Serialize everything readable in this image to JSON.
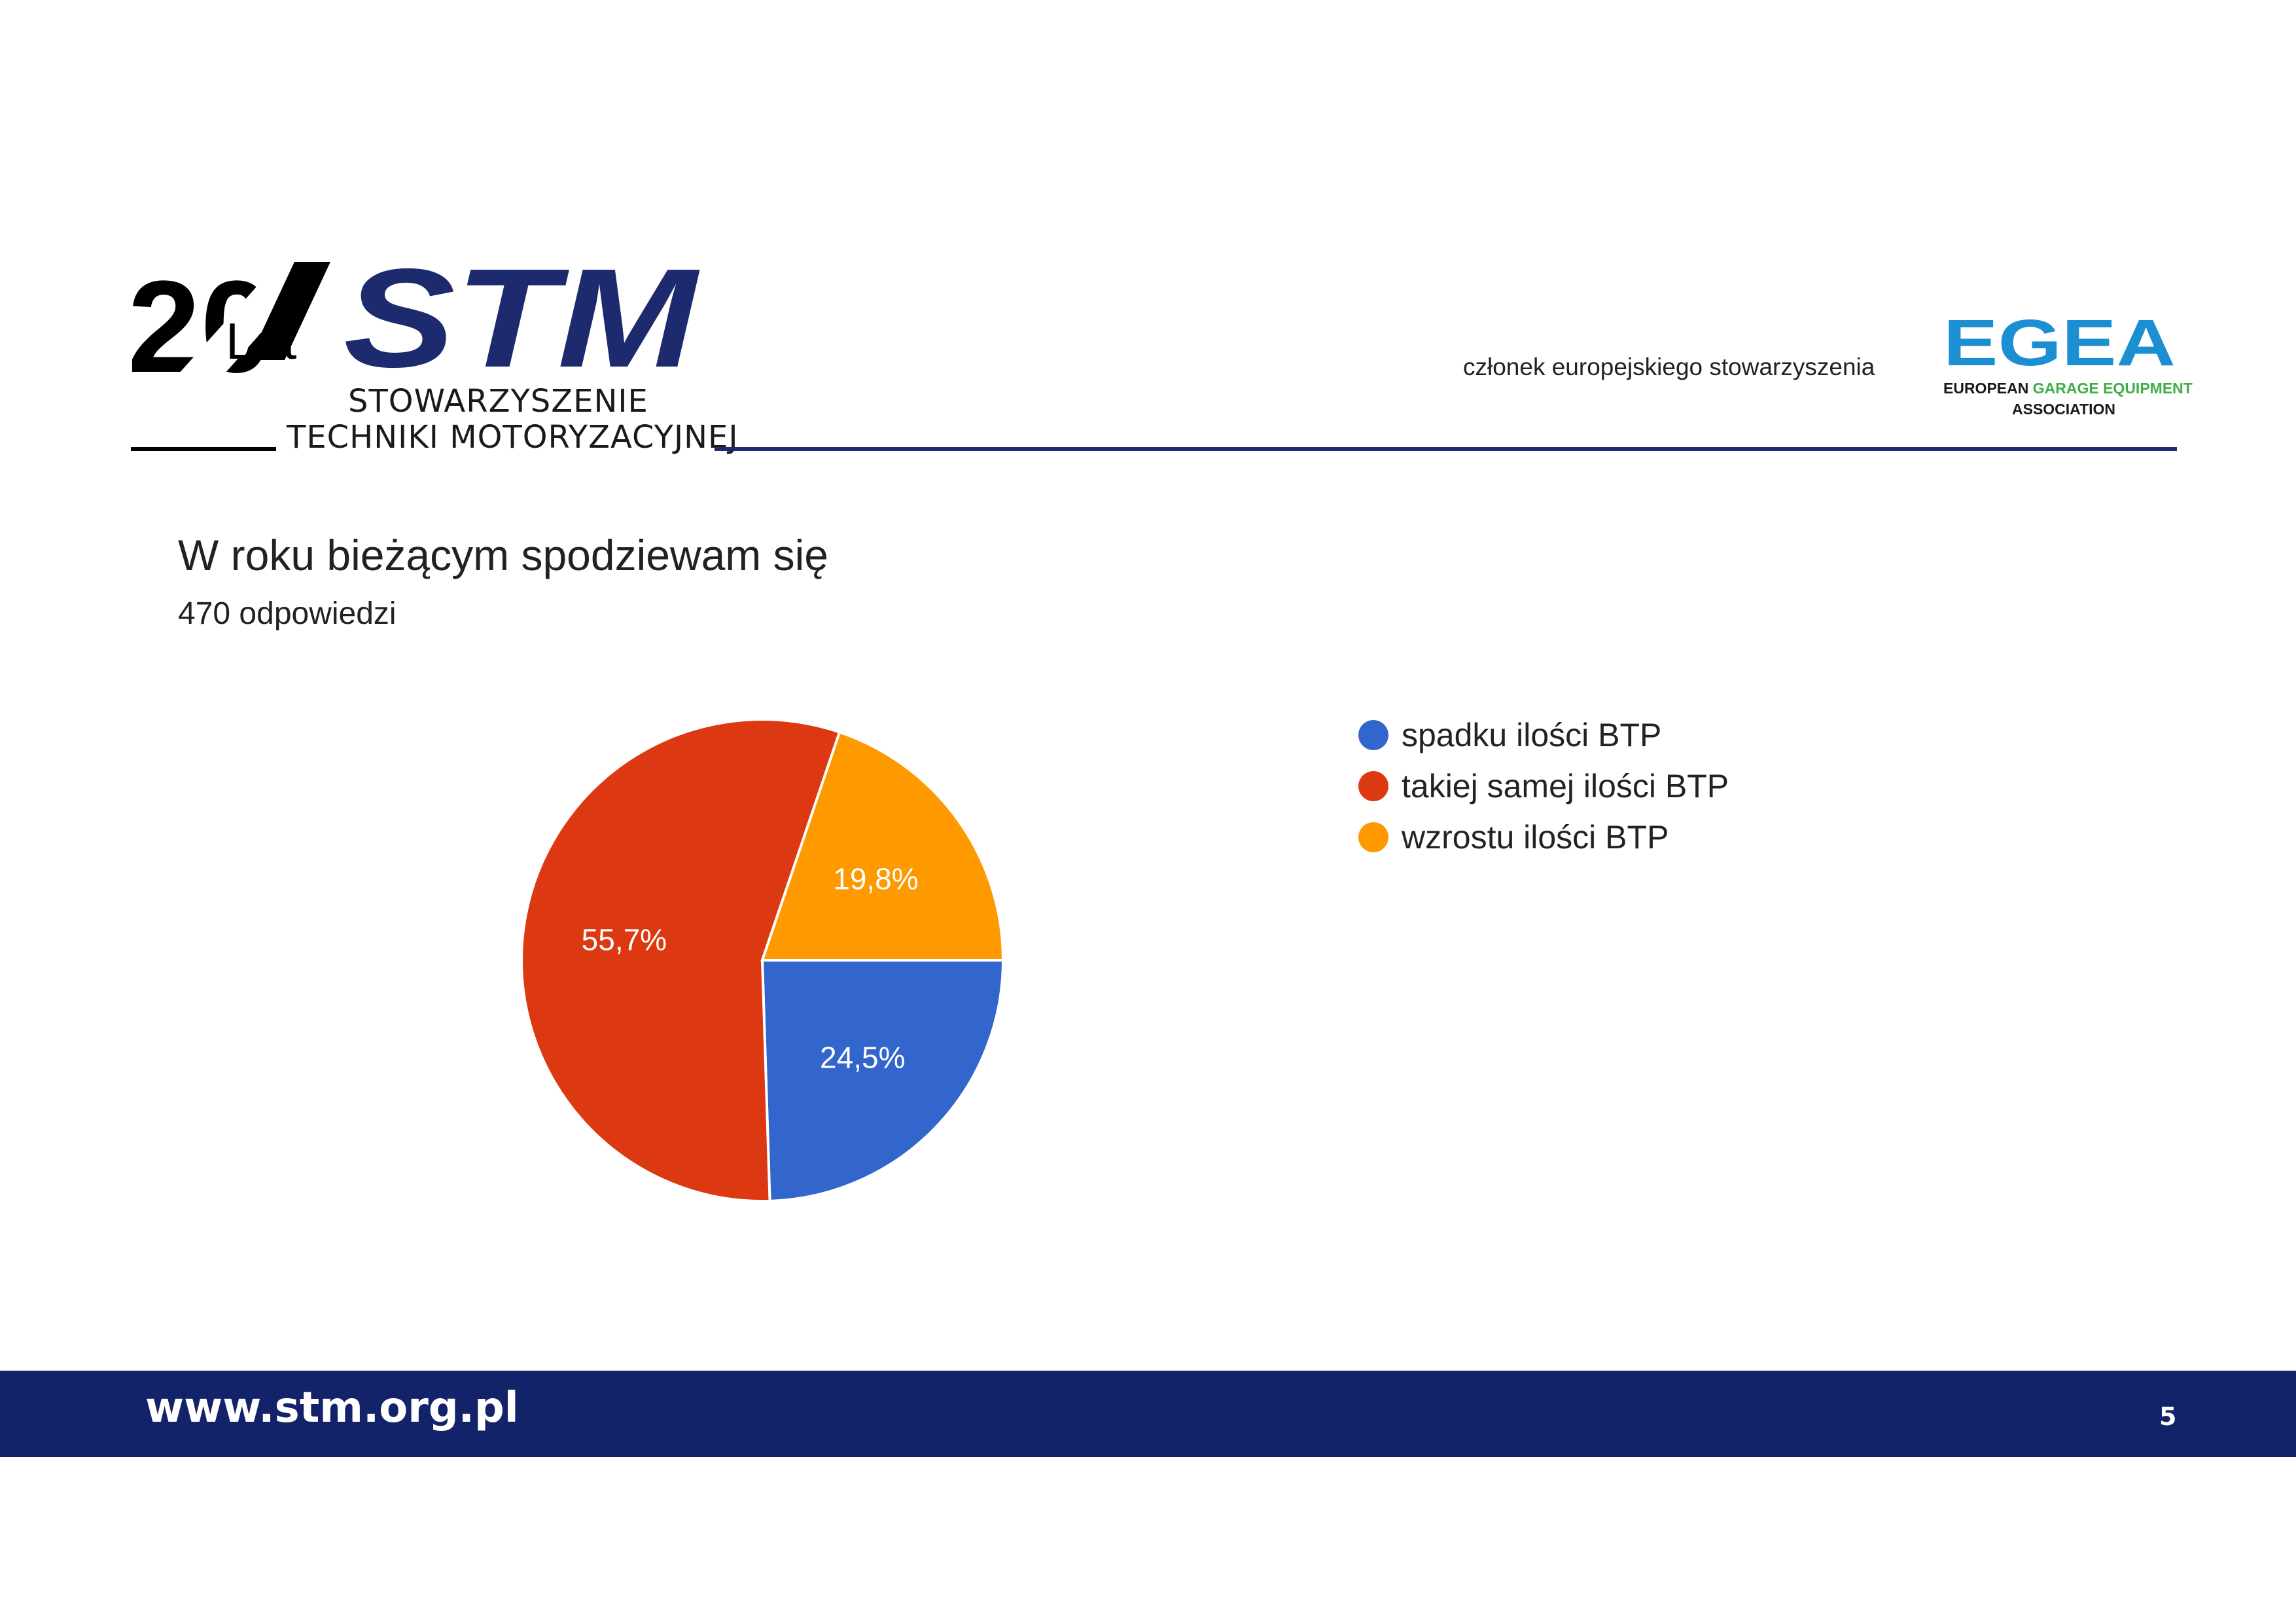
{
  "header": {
    "logo_anniversary_number": "20",
    "logo_anniversary_word": "Lat",
    "logo_brand": "STM",
    "logo_subtitle_line1": "STOWARZYSZENIE",
    "logo_subtitle_line2": "TECHNIKI MOTORYZACYJNEJ",
    "member_text": "członek europejskiego stowarzyszenia",
    "egea_brand": "EGEA",
    "egea_line1_part1": "EUROPEAN ",
    "egea_line1_part2": "GARAGE EQUIPMENT",
    "egea_line2": "ASSOCIATION"
  },
  "colors": {
    "navy": "#1d2b6e",
    "footer_bg": "#13236a",
    "egea_blue": "#1b8fd2",
    "egea_green": "#3fae49"
  },
  "chart_data": {
    "type": "pie",
    "title": "W roku bieżącym spodziewam się",
    "subtitle": "470 odpowiedzi",
    "legend_position": "right",
    "slices": [
      {
        "label": "spadku ilości BTP",
        "value": 24.5,
        "value_label": "24,5%",
        "color": "#3366cc"
      },
      {
        "label": "takiej samej ilości BTP",
        "value": 55.7,
        "value_label": "55,7%",
        "color": "#dc3912"
      },
      {
        "label": "wzrostu ilości BTP",
        "value": 19.8,
        "value_label": "19,8%",
        "color": "#ff9900"
      }
    ]
  },
  "footer": {
    "url": "www.stm.org.pl",
    "page_number": "5"
  }
}
